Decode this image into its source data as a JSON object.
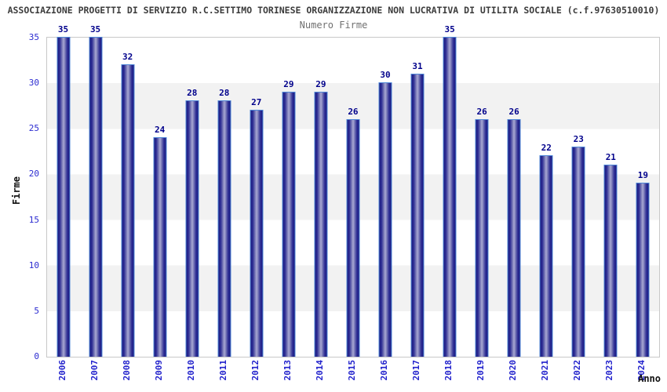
{
  "title": "ASSOCIAZIONE PROGETTI DI SERVIZIO R.C.SETTIMO TORINESE ORGANIZZAZIONE NON LUCRATIVA DI UTILITA SOCIALE (c.f.97630510010)",
  "subtitle": "Numero Firme",
  "chart_data": {
    "type": "bar",
    "title": "Numero Firme",
    "categories": [
      "2006",
      "2007",
      "2008",
      "2009",
      "2010",
      "2011",
      "2012",
      "2013",
      "2014",
      "2015",
      "2016",
      "2017",
      "2018",
      "2019",
      "2020",
      "2021",
      "2022",
      "2023",
      "2024"
    ],
    "values": [
      35,
      35,
      32,
      24,
      28,
      28,
      27,
      29,
      29,
      26,
      30,
      31,
      35,
      26,
      26,
      22,
      23,
      21,
      19
    ],
    "xlabel": "Anno",
    "ylabel": "Firme",
    "ylim": [
      0,
      35
    ],
    "yticks": [
      0,
      5,
      10,
      15,
      20,
      25,
      30,
      35
    ],
    "grid": "alternating horizontal bands every 5 units",
    "legend_position": "none",
    "data_labels": "value shown above each bar"
  },
  "colors": {
    "bar_border": "#4f87d7",
    "bar_gradient_dark": "#1a1a80",
    "bar_gradient_light": "#a9a9d4",
    "value_label": "#00008b",
    "year_label": "#2222cc",
    "ytick_label": "#2b2bd0",
    "band_fill": "#f2f2f2",
    "plot_frame": "#c8c8c8",
    "title_text": "#3c3c3c",
    "subtitle_text": "#707070",
    "axis_title_text": "#111111"
  }
}
